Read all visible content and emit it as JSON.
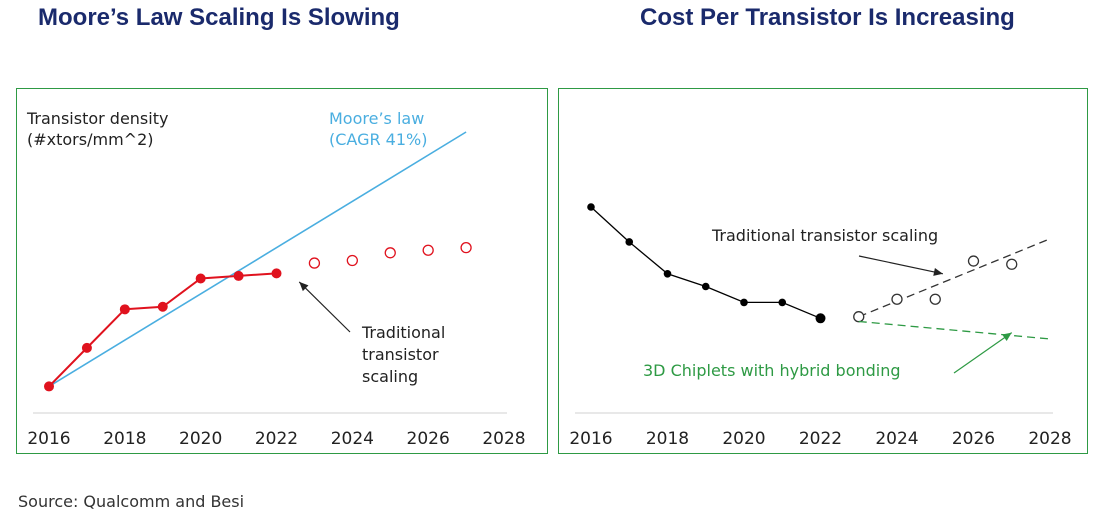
{
  "page": {
    "source": "Source: Qualcomm and Besi"
  },
  "chart_data": [
    {
      "type": "line",
      "title": "Moore’s Law Scaling Is Slowing",
      "ylabel_lines": [
        "Transistor density",
        "(#xtors/mm^2)"
      ],
      "x_ticks": [
        "2016",
        "2018",
        "2020",
        "2022",
        "2024",
        "2026",
        "2028"
      ],
      "xlim": [
        2016,
        2028
      ],
      "ylim": [
        0,
        100
      ],
      "series": [
        {
          "name": "Moore’s law trend",
          "label_lines": [
            "Moore’s law",
            "(CAGR 41%)"
          ],
          "color": "#4aaee0",
          "style": "line",
          "x": [
            2016,
            2027
          ],
          "values": [
            1,
            100
          ]
        },
        {
          "name": "Traditional transistor scaling (actual)",
          "color": "#e0121e",
          "style": "filled-markers-line",
          "x": [
            2016,
            2017,
            2018,
            2019,
            2020,
            2021,
            2022
          ],
          "values": [
            1,
            16,
            31,
            32,
            43,
            44,
            45
          ]
        },
        {
          "name": "Traditional transistor scaling (projected)",
          "color": "#e0121e",
          "style": "open-markers",
          "x": [
            2023,
            2024,
            2025,
            2026,
            2027
          ],
          "values": [
            49,
            50,
            53,
            54,
            55
          ]
        }
      ],
      "annotation": {
        "lines": [
          "Traditional",
          "transistor",
          "scaling"
        ],
        "arrow_to": [
          2022.6,
          44
        ]
      }
    },
    {
      "type": "line",
      "title": "Cost Per Transistor Is Increasing",
      "x_ticks": [
        "2016",
        "2018",
        "2020",
        "2022",
        "2024",
        "2026",
        "2028"
      ],
      "xlim": [
        2016,
        2028
      ],
      "ylim": [
        0,
        100
      ],
      "series": [
        {
          "name": "Cost per transistor (actual)",
          "color": "#000000",
          "style": "filled-markers-line",
          "x": [
            2016,
            2017,
            2018,
            2019,
            2020,
            2021,
            2022
          ],
          "values": [
            100,
            78,
            58,
            50,
            40,
            40,
            30
          ]
        },
        {
          "name": "Traditional transistor scaling trend",
          "color": "#333333",
          "style": "dashed",
          "x": [
            2023,
            2028
          ],
          "values": [
            31,
            80
          ]
        },
        {
          "name": "Traditional transistor scaling (projected)",
          "color": "#333333",
          "style": "open-markers",
          "x": [
            2023,
            2024,
            2025,
            2026,
            2027
          ],
          "values": [
            31,
            42,
            42,
            66,
            64
          ]
        },
        {
          "name": "3D Chiplets with hybrid bonding trend",
          "color": "#2e9a44",
          "style": "dashed",
          "x": [
            2023,
            2028
          ],
          "values": [
            28,
            17
          ]
        }
      ],
      "annotations": [
        {
          "text": "Traditional transistor scaling",
          "color": "#222222",
          "arrow_to": [
            2025.2,
            58
          ]
        },
        {
          "text": "3D Chiplets with hybrid bonding",
          "color": "#2e9a44",
          "arrow_to": [
            2027.0,
            21
          ]
        }
      ]
    }
  ]
}
